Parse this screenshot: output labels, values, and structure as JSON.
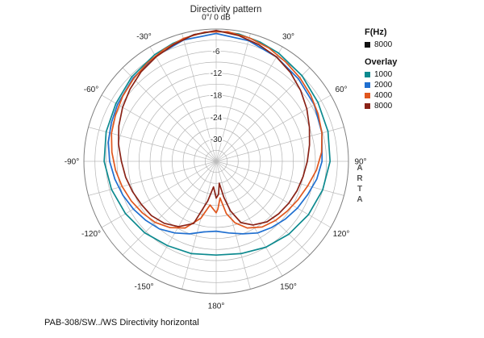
{
  "chart_data": {
    "type": "polar",
    "title": "Directivity pattern",
    "r_axis": {
      "unit": "dB",
      "outer": 0,
      "center": -36,
      "ring_step": 3,
      "labels": [
        -6,
        -12,
        -18,
        -24,
        -30
      ]
    },
    "angle_axis": {
      "step_deg": 15,
      "labels": [
        {
          "angle": 0,
          "label": "0°/ 0 dB"
        },
        {
          "angle": 30,
          "label": "30°"
        },
        {
          "angle": 60,
          "label": "60°"
        },
        {
          "angle": 90,
          "label": "90°"
        },
        {
          "angle": 120,
          "label": "120°"
        },
        {
          "angle": 150,
          "label": "150°"
        },
        {
          "angle": 180,
          "label": "180°"
        },
        {
          "angle": -150,
          "label": "-150°"
        },
        {
          "angle": -120,
          "label": "-120°"
        },
        {
          "angle": -90,
          "label": "-90°"
        },
        {
          "angle": -60,
          "label": "-60°"
        },
        {
          "angle": -30,
          "label": "-30°"
        }
      ]
    },
    "series": [
      {
        "name": "1000",
        "color": "#0d8a8f",
        "points": [
          [
            -180,
            -10.5
          ],
          [
            -165,
            -10
          ],
          [
            -150,
            -9.5
          ],
          [
            -135,
            -8.5
          ],
          [
            -120,
            -7.5
          ],
          [
            -105,
            -6.5
          ],
          [
            -90,
            -5.5
          ],
          [
            -75,
            -5
          ],
          [
            -60,
            -4.5
          ],
          [
            -45,
            -3.5
          ],
          [
            -30,
            -2.5
          ],
          [
            -20,
            -1.8
          ],
          [
            -10,
            -1
          ],
          [
            0,
            -0.5
          ],
          [
            10,
            -0.8
          ],
          [
            20,
            -1.4
          ],
          [
            30,
            -2
          ],
          [
            45,
            -3
          ],
          [
            60,
            -4
          ],
          [
            75,
            -4.5
          ],
          [
            90,
            -5
          ],
          [
            105,
            -6
          ],
          [
            120,
            -7
          ],
          [
            135,
            -8
          ],
          [
            150,
            -9
          ],
          [
            165,
            -10
          ],
          [
            180,
            -10.5
          ]
        ]
      },
      {
        "name": "2000",
        "color": "#1f6fd0",
        "points": [
          [
            -180,
            -17
          ],
          [
            -170,
            -16.5
          ],
          [
            -160,
            -15
          ],
          [
            -150,
            -13.5
          ],
          [
            -140,
            -12
          ],
          [
            -130,
            -11
          ],
          [
            -120,
            -10
          ],
          [
            -110,
            -9
          ],
          [
            -100,
            -8
          ],
          [
            -90,
            -7
          ],
          [
            -80,
            -6.2
          ],
          [
            -70,
            -5.6
          ],
          [
            -60,
            -5
          ],
          [
            -45,
            -4
          ],
          [
            -30,
            -3
          ],
          [
            -15,
            -1.8
          ],
          [
            0,
            -1.2
          ],
          [
            15,
            -2
          ],
          [
            30,
            -3.2
          ],
          [
            45,
            -4.3
          ],
          [
            60,
            -5.2
          ],
          [
            75,
            -6.2
          ],
          [
            90,
            -7.2
          ],
          [
            100,
            -8.2
          ],
          [
            110,
            -9.5
          ],
          [
            120,
            -10.5
          ],
          [
            130,
            -11.5
          ],
          [
            140,
            -12.5
          ],
          [
            150,
            -13.5
          ],
          [
            160,
            -15
          ],
          [
            170,
            -16.2
          ],
          [
            180,
            -17
          ]
        ]
      },
      {
        "name": "4000",
        "color": "#e0571e",
        "points": [
          [
            -180,
            -22
          ],
          [
            -172,
            -24
          ],
          [
            -165,
            -20
          ],
          [
            -155,
            -16
          ],
          [
            -145,
            -14
          ],
          [
            -135,
            -12.5
          ],
          [
            -125,
            -11.5
          ],
          [
            -115,
            -10.5
          ],
          [
            -105,
            -9.5
          ],
          [
            -95,
            -8.5
          ],
          [
            -85,
            -7.5
          ],
          [
            -75,
            -6.5
          ],
          [
            -65,
            -5.8
          ],
          [
            -55,
            -5
          ],
          [
            -45,
            -4.2
          ],
          [
            -35,
            -3.3
          ],
          [
            -25,
            -2.4
          ],
          [
            -15,
            -1.4
          ],
          [
            -5,
            -0.7
          ],
          [
            5,
            -0.6
          ],
          [
            15,
            -1.2
          ],
          [
            25,
            -2
          ],
          [
            35,
            -3
          ],
          [
            45,
            -3.8
          ],
          [
            55,
            -4.6
          ],
          [
            65,
            -5.4
          ],
          [
            75,
            -6.2
          ],
          [
            85,
            -7.2
          ],
          [
            95,
            -8.6
          ],
          [
            105,
            -10.2
          ],
          [
            115,
            -11.4
          ],
          [
            125,
            -12.4
          ],
          [
            135,
            -13.2
          ],
          [
            145,
            -14.2
          ],
          [
            155,
            -16
          ],
          [
            163,
            -18.5
          ],
          [
            169,
            -21.5
          ],
          [
            174,
            -26
          ],
          [
            178,
            -23
          ],
          [
            180,
            -22
          ]
        ]
      },
      {
        "name": "8000",
        "color": "#8a2317",
        "points": [
          [
            -180,
            -26
          ],
          [
            -174,
            -29
          ],
          [
            -168,
            -25
          ],
          [
            -160,
            -18
          ],
          [
            -150,
            -15.5
          ],
          [
            -140,
            -14
          ],
          [
            -130,
            -13
          ],
          [
            -120,
            -12.5
          ],
          [
            -110,
            -11.8
          ],
          [
            -100,
            -11
          ],
          [
            -90,
            -10.2
          ],
          [
            -80,
            -9
          ],
          [
            -70,
            -7.8
          ],
          [
            -60,
            -6.6
          ],
          [
            -50,
            -5.4
          ],
          [
            -40,
            -4.2
          ],
          [
            -30,
            -3.2
          ],
          [
            -20,
            -2.2
          ],
          [
            -10,
            -1
          ],
          [
            0,
            -0.4
          ],
          [
            10,
            -1.2
          ],
          [
            20,
            -2.2
          ],
          [
            30,
            -3.2
          ],
          [
            40,
            -4.5
          ],
          [
            50,
            -6
          ],
          [
            60,
            -7.5
          ],
          [
            70,
            -9
          ],
          [
            80,
            -10.2
          ],
          [
            90,
            -11.2
          ],
          [
            100,
            -12
          ],
          [
            110,
            -12.6
          ],
          [
            120,
            -13.2
          ],
          [
            130,
            -13.8
          ],
          [
            140,
            -14.5
          ],
          [
            150,
            -16
          ],
          [
            158,
            -18
          ],
          [
            164,
            -22
          ],
          [
            168,
            -26
          ],
          [
            172,
            -30
          ],
          [
            176,
            -27
          ],
          [
            180,
            -26
          ]
        ]
      }
    ]
  },
  "legend": {
    "fhz_header": "F(Hz)",
    "fhz_items": [
      {
        "label": "8000",
        "color": "#111111"
      }
    ],
    "overlay_header": "Overlay",
    "overlay_items": [
      {
        "label": "1000",
        "color": "#0d8a8f"
      },
      {
        "label": "2000",
        "color": "#1f6fd0"
      },
      {
        "label": "4000",
        "color": "#e0571e"
      },
      {
        "label": "8000",
        "color": "#8a2317"
      }
    ]
  },
  "branding": {
    "arta": "ARTA"
  },
  "footer": {
    "text": "PAB-308/SW../WS  Directivity horizontal"
  }
}
